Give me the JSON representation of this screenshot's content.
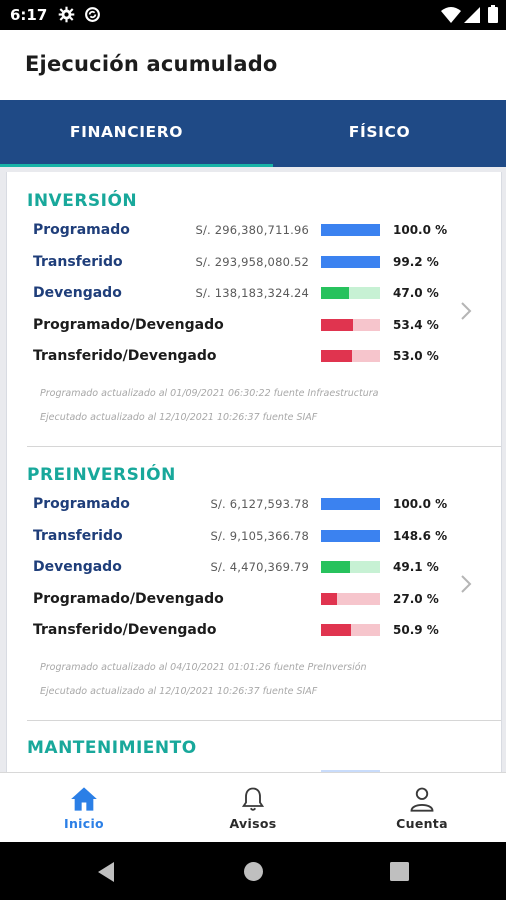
{
  "status_bar": {
    "time": "6:17",
    "icons": [
      "gear-icon",
      "sync-icon",
      "wifi-icon",
      "signal-icon",
      "battery-icon"
    ]
  },
  "app_bar": {
    "title": "Ejecución acumulado"
  },
  "tabs": [
    {
      "label": "FINANCIERO",
      "active": true
    },
    {
      "label": "FÍSICO",
      "active": false
    }
  ],
  "colors": {
    "header_blue": "#1f4a86",
    "accent_teal": "#19b3a6",
    "bar_blue": "#3b82f0",
    "bar_green": "#27c25d",
    "bar_green_track": "#c7f1d4",
    "bar_red": "#e0344f",
    "bar_red_track": "#f6c5cc",
    "nav_active": "#2b7fe6"
  },
  "sections": [
    {
      "title": "INVERSIÓN",
      "rows": [
        {
          "label": "Programado",
          "amount": "S/. 296,380,711.96",
          "percent": "100.0 %",
          "fill": 1.0,
          "bar": "blue"
        },
        {
          "label": "Transferido",
          "amount": "S/. 293,958,080.52",
          "percent": "99.2 %",
          "fill": 0.992,
          "bar": "blue"
        },
        {
          "label": "Devengado",
          "amount": "S/. 138,183,324.24",
          "percent": "47.0 %",
          "fill": 0.47,
          "bar": "green"
        },
        {
          "label": "Programado/Devengado",
          "amount": "",
          "percent": "53.4 %",
          "fill": 0.534,
          "bar": "red"
        },
        {
          "label": "Transferido/Devengado",
          "amount": "",
          "percent": "53.0 %",
          "fill": 0.53,
          "bar": "red"
        }
      ],
      "notes": [
        "Programado actualizado al 01/09/2021 06:30:22 fuente Infraestructura",
        "Ejecutado actualizado al 12/10/2021 10:26:37 fuente SIAF"
      ]
    },
    {
      "title": "PREINVERSIÓN",
      "rows": [
        {
          "label": "Programado",
          "amount": "S/. 6,127,593.78",
          "percent": "100.0 %",
          "fill": 1.0,
          "bar": "blue"
        },
        {
          "label": "Transferido",
          "amount": "S/. 9,105,366.78",
          "percent": "148.6 %",
          "fill": 1.0,
          "bar": "blue"
        },
        {
          "label": "Devengado",
          "amount": "S/. 4,470,369.79",
          "percent": "49.1 %",
          "fill": 0.491,
          "bar": "green"
        },
        {
          "label": "Programado/Devengado",
          "amount": "",
          "percent": "27.0 %",
          "fill": 0.27,
          "bar": "red"
        },
        {
          "label": "Transferido/Devengado",
          "amount": "",
          "percent": "50.9 %",
          "fill": 0.509,
          "bar": "red"
        }
      ],
      "notes": [
        "Programado actualizado al 04/10/2021 01:01:26 fuente PreInversión",
        "Ejecutado actualizado al 12/10/2021 10:26:37 fuente SIAF"
      ]
    },
    {
      "title": "MANTENIMIENTO"
    }
  ],
  "bottom_nav": [
    {
      "label": "Inicio",
      "icon": "home-icon",
      "active": true
    },
    {
      "label": "Avisos",
      "icon": "bell-icon",
      "active": false
    },
    {
      "label": "Cuenta",
      "icon": "user-icon",
      "active": false
    }
  ],
  "system_nav": [
    "back-icon",
    "home-circle-icon",
    "recents-icon"
  ]
}
